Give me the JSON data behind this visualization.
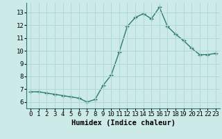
{
  "x": [
    0,
    1,
    2,
    3,
    4,
    5,
    6,
    7,
    8,
    9,
    10,
    11,
    12,
    13,
    14,
    15,
    16,
    17,
    18,
    19,
    20,
    21,
    22,
    23
  ],
  "y": [
    6.8,
    6.8,
    6.7,
    6.6,
    6.5,
    6.4,
    6.3,
    6.0,
    6.2,
    7.3,
    8.1,
    9.9,
    11.9,
    12.6,
    12.9,
    12.5,
    13.4,
    11.9,
    11.3,
    10.8,
    10.2,
    9.7,
    9.7,
    9.8
  ],
  "line_color": "#2d7a72",
  "marker": "+",
  "marker_size": 4,
  "marker_linewidth": 1.0,
  "bg_color": "#cceae7",
  "grid_color": "#b0d8d4",
  "xlabel": "Humidex (Indice chaleur)",
  "tick_fontsize": 6.5,
  "xlabel_fontsize": 7.5,
  "xlim": [
    -0.5,
    23.5
  ],
  "ylim": [
    5.5,
    13.75
  ],
  "yticks": [
    6,
    7,
    8,
    9,
    10,
    11,
    12,
    13
  ],
  "linewidth": 1.0
}
